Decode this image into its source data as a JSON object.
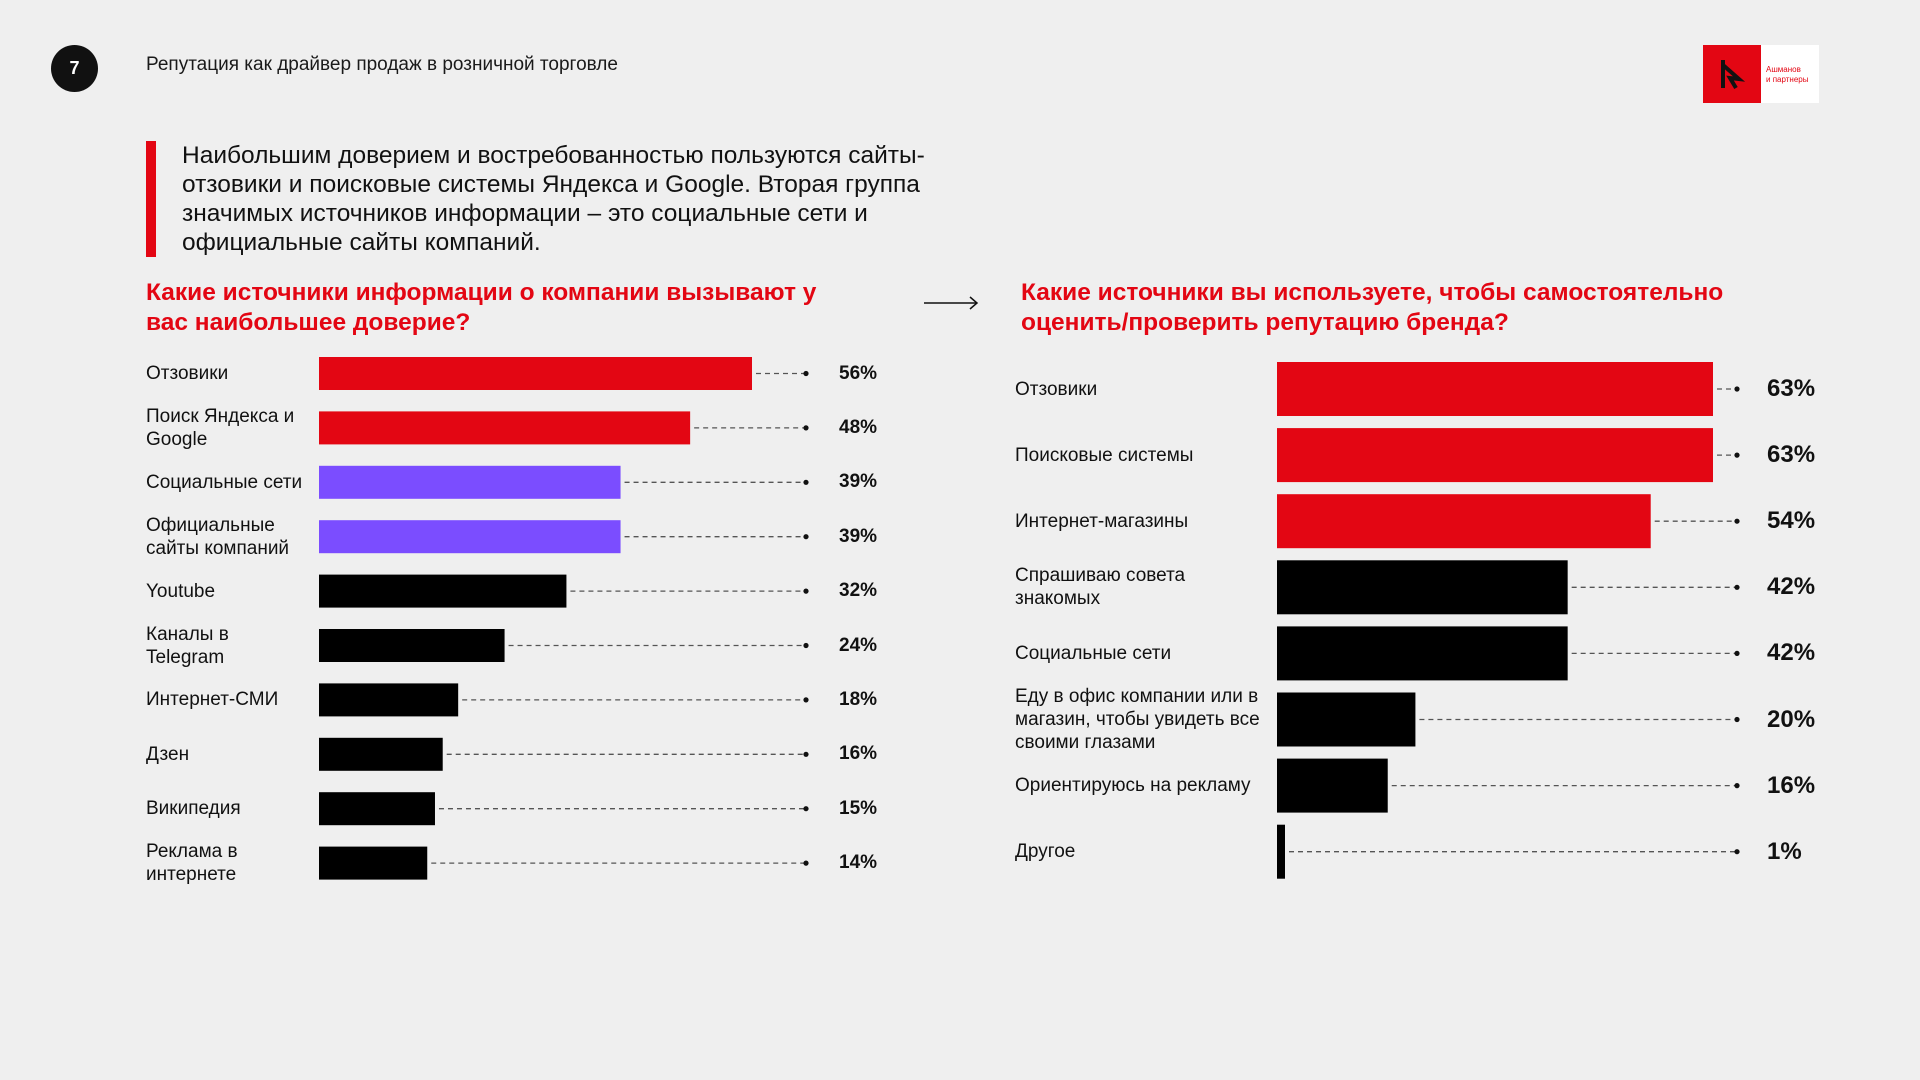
{
  "header": {
    "page_number": "7",
    "title": "Репутация как драйвер продаж в розничной торговле",
    "logo_text_line1": "Ашманов",
    "logo_text_line2": "и партнеры"
  },
  "lead_text": "Наибольшим доверием и востребованностью пользуются сайты-отзовики и поисковые системы Яндекса и Google. Вторая группа значимых источников информации – это социальные сети и официальные сайты компаний.",
  "colors": {
    "red": "#e30613",
    "purple": "#7b4dff",
    "black": "#000000",
    "background": "#efefef"
  },
  "chart_data": [
    {
      "type": "bar",
      "orientation": "horizontal",
      "title": "Какие источники информации о компании вызывают у вас наибольшее доверие?",
      "categories": [
        "Отзовики",
        "Поиск Яндекса и Google",
        "Социальные сети",
        "Официальные сайты компаний",
        "Youtube",
        "Каналы в Telegram",
        "Интернет-СМИ",
        "Дзен",
        "Википедия",
        "Реклама в интернете"
      ],
      "values": [
        56,
        48,
        39,
        39,
        32,
        24,
        18,
        16,
        15,
        14
      ],
      "value_labels": [
        "56%",
        "48%",
        "39%",
        "39%",
        "32%",
        "24%",
        "18%",
        "16%",
        "15%",
        "14%"
      ],
      "bar_colors": [
        "red",
        "red",
        "purple",
        "purple",
        "black",
        "black",
        "black",
        "black",
        "black",
        "black"
      ],
      "unit": "%"
    },
    {
      "type": "bar",
      "orientation": "horizontal",
      "title": "Какие источники вы используете, чтобы самостоятельно оценить/проверить репутацию бренда?",
      "categories": [
        "Отзовики",
        "Поисковые системы",
        "Интернет-магазины",
        "Спрашиваю совета знакомых",
        "Социальные сети",
        "Еду в офис компании или в магазин, чтобы увидеть все своими глазами",
        "Ориентируюсь на рекламу",
        "Другое"
      ],
      "values": [
        63,
        63,
        54,
        42,
        42,
        20,
        16,
        1
      ],
      "value_labels": [
        "63%",
        "63%",
        "54%",
        "42%",
        "42%",
        "20%",
        "16%",
        "1%"
      ],
      "bar_colors": [
        "red",
        "red",
        "red",
        "black",
        "black",
        "black",
        "black",
        "black"
      ],
      "unit": "%"
    }
  ]
}
